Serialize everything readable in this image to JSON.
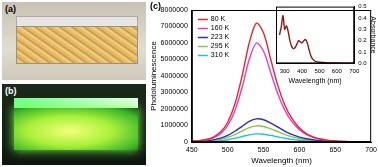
{
  "panel_labels": [
    "(a)",
    "(b)",
    "(c)"
  ],
  "chart_data": [
    {
      "type": "line",
      "x_label": "Wavelength (nm)",
      "y_label": "Photoluminescence",
      "x": [
        450,
        460,
        470,
        480,
        490,
        500,
        510,
        520,
        530,
        540,
        550,
        560,
        570,
        580,
        590,
        600,
        610,
        620,
        630,
        640,
        650,
        660,
        670,
        680,
        690,
        700
      ],
      "series": [
        {
          "name": "80 K",
          "color": "#e8262b",
          "values": [
            50000,
            80000,
            150000,
            300000,
            600000,
            1200000,
            2300000,
            4000000,
            6000000,
            7200000,
            6600000,
            5000000,
            3400000,
            2200000,
            1400000,
            850000,
            500000,
            300000,
            180000,
            100000,
            60000,
            40000,
            25000,
            15000,
            10000,
            5000
          ]
        },
        {
          "name": "160 K",
          "color": "#e03fd2",
          "values": [
            40000,
            70000,
            120000,
            250000,
            500000,
            1000000,
            1900000,
            3300000,
            5000000,
            6000000,
            5500000,
            4200000,
            2900000,
            1900000,
            1200000,
            750000,
            450000,
            270000,
            160000,
            90000,
            50000,
            30000,
            20000,
            12000,
            8000,
            4000
          ]
        },
        {
          "name": "223 K",
          "color": "#2b2bd0",
          "values": [
            20000,
            40000,
            70000,
            130000,
            230000,
            400000,
            650000,
            950000,
            1250000,
            1400000,
            1350000,
            1150000,
            900000,
            650000,
            450000,
            300000,
            200000,
            130000,
            80000,
            50000,
            30000,
            20000,
            12000,
            8000,
            5000,
            3000
          ]
        },
        {
          "name": "295 K",
          "color": "#8cc63f",
          "values": [
            15000,
            28000,
            50000,
            90000,
            160000,
            280000,
            450000,
            660000,
            870000,
            980000,
            940000,
            800000,
            630000,
            450000,
            310000,
            210000,
            140000,
            90000,
            56000,
            35000,
            21000,
            14000,
            8000,
            5000,
            3000,
            2000
          ]
        },
        {
          "name": "310 K",
          "color": "#17c3e8",
          "values": [
            8000,
            14000,
            25000,
            45000,
            80000,
            140000,
            230000,
            330000,
            430000,
            490000,
            470000,
            400000,
            310000,
            230000,
            160000,
            105000,
            70000,
            45000,
            28000,
            18000,
            11000,
            7000,
            4000,
            3000,
            2000,
            1000
          ]
        }
      ],
      "xlim": [
        450,
        700
      ],
      "xticks": [
        450,
        500,
        550,
        600,
        650,
        700
      ],
      "ylim": [
        0,
        8000000
      ],
      "yticks": [
        0,
        1000000,
        2000000,
        3000000,
        4000000,
        5000000,
        6000000,
        7000000,
        8000000
      ],
      "legend": "top-left",
      "grid": false
    },
    {
      "type": "line",
      "x_label": "Wavelength (nm)",
      "y_label": "Absorbance",
      "x": [
        270,
        280,
        290,
        300,
        310,
        320,
        330,
        340,
        350,
        360,
        370,
        380,
        390,
        400,
        410,
        420,
        430,
        440,
        450,
        460,
        470,
        480,
        500,
        550,
        600,
        650,
        700
      ],
      "series": [
        {
          "name": "Absorbance",
          "color": "#8b1a1a",
          "axis": "y2",
          "values": [
            0.25,
            0.32,
            0.42,
            0.3,
            0.33,
            0.28,
            0.2,
            0.15,
            0.13,
            0.14,
            0.17,
            0.2,
            0.19,
            0.18,
            0.2,
            0.21,
            0.18,
            0.12,
            0.07,
            0.04,
            0.025,
            0.015,
            0.01,
            0.005,
            0.003,
            0.002,
            0.002
          ]
        }
      ],
      "xlim": [
        250,
        700
      ],
      "xticks": [
        300,
        400,
        500,
        600,
        700
      ],
      "y2lim": [
        0,
        0.5
      ],
      "y2ticks": [
        {
          "value": 0,
          "label": "0.0"
        },
        {
          "value": 0.1,
          "label": "0.1"
        },
        {
          "value": 0.2,
          "label": "0.2"
        },
        {
          "value": 0.3,
          "label": "0.3"
        },
        {
          "value": 0.4,
          "label": "0.4"
        },
        {
          "value": 0.5,
          "label": "0.5"
        }
      ],
      "grid": false
    }
  ]
}
